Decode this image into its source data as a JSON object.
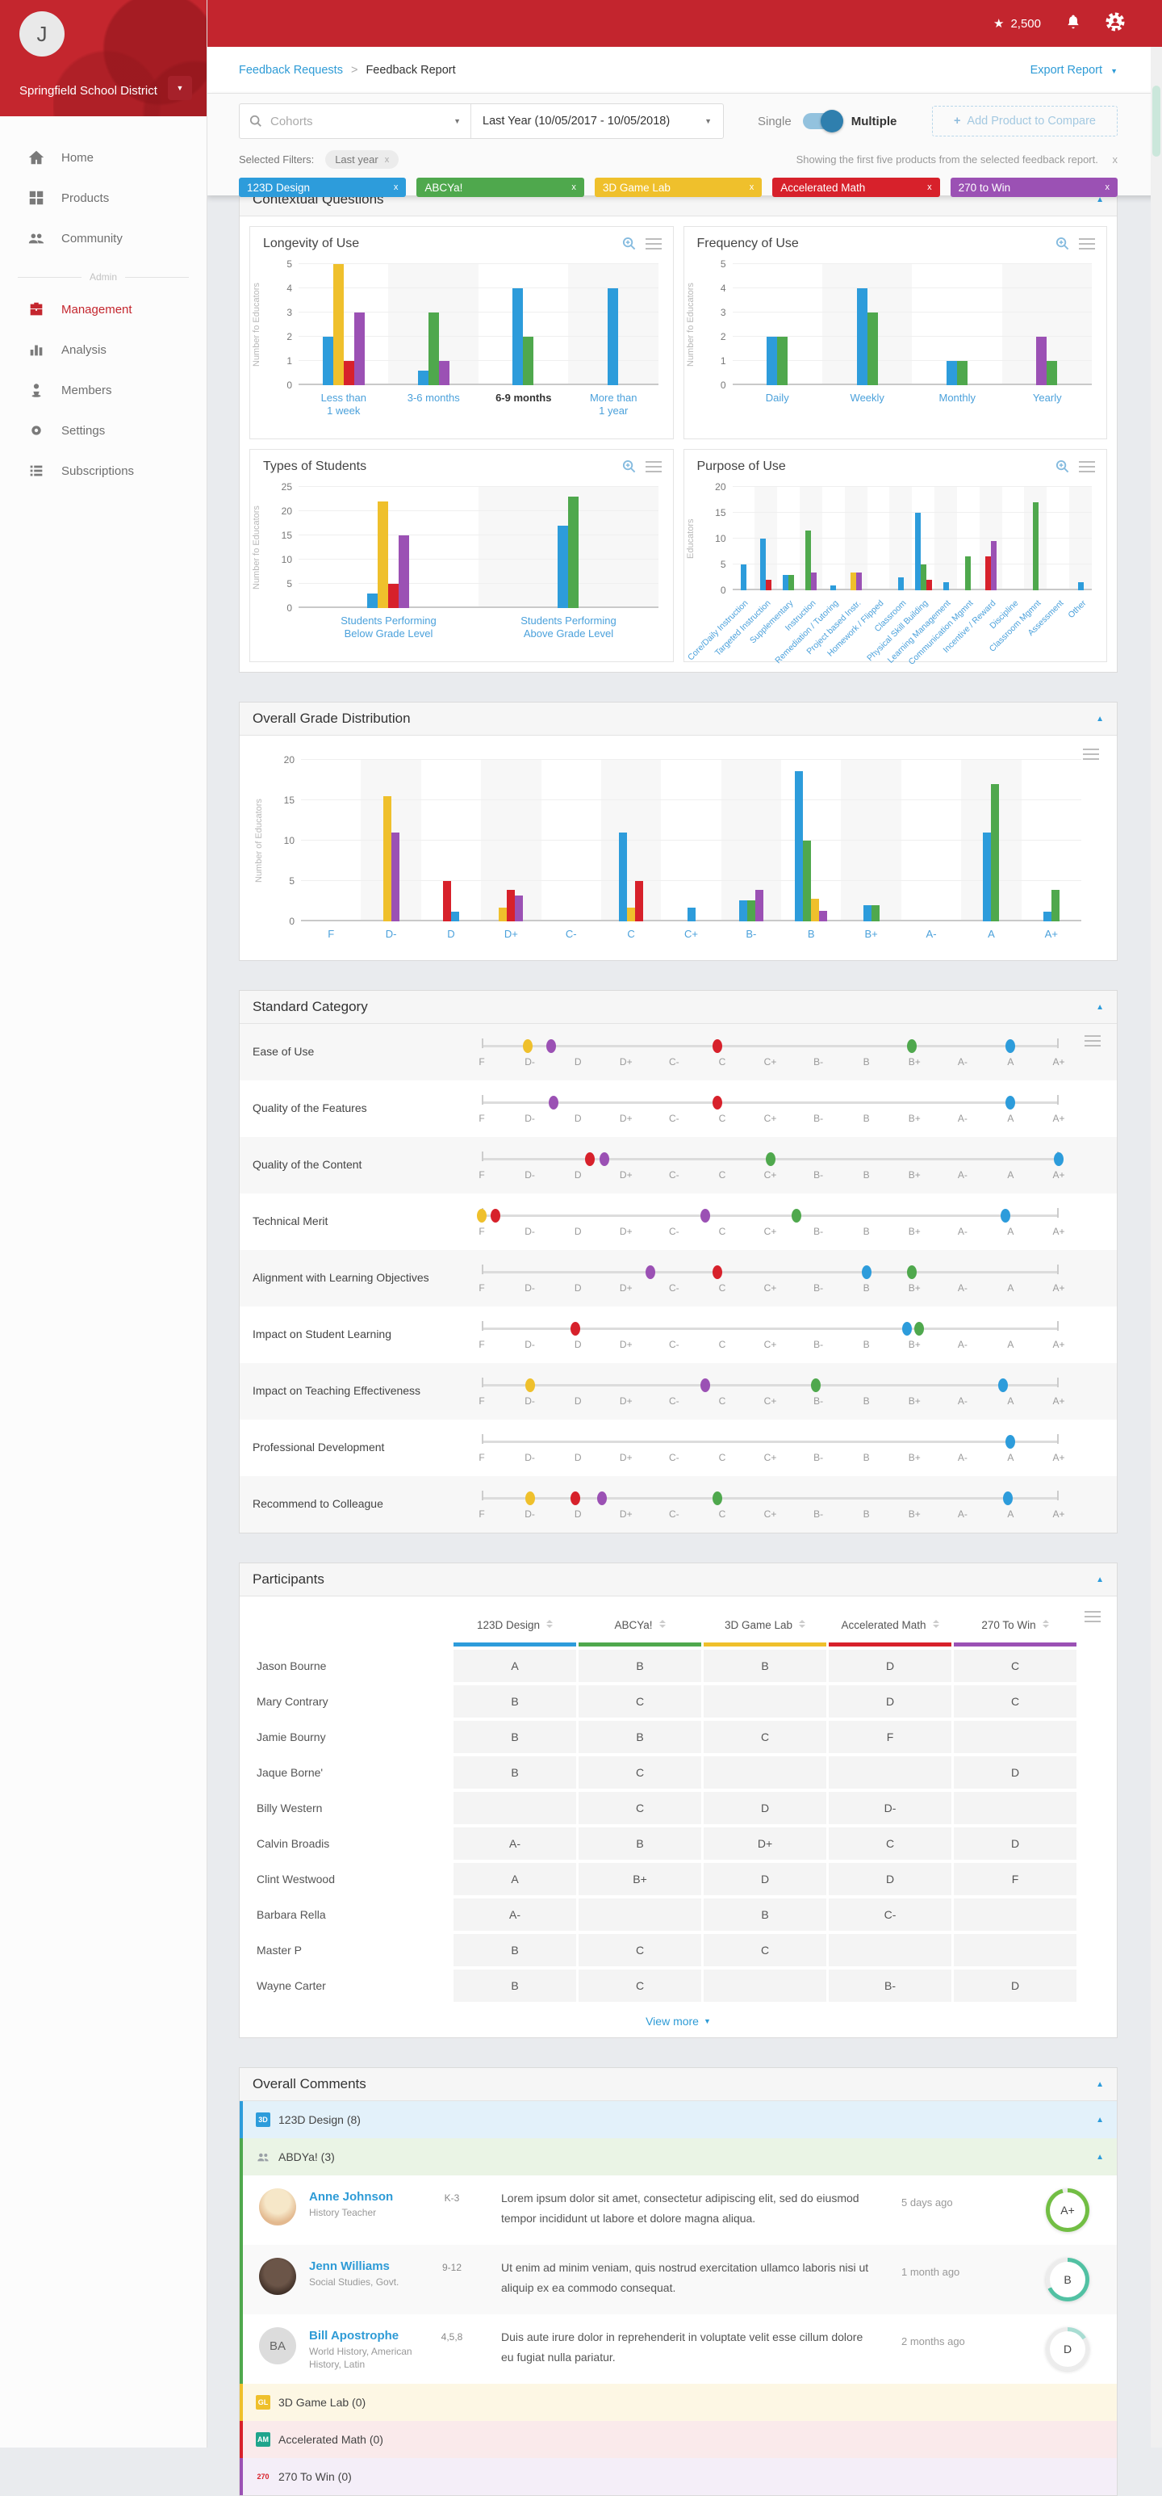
{
  "palette": {
    "blue": "#2D9CDB",
    "green": "#4FA84D",
    "yellow": "#EFC02C",
    "red": "#D7212B",
    "purple": "#9B51B4"
  },
  "series_colors": {
    "blue": "123D Design",
    "green": "ABCYa!",
    "yellow": "3D Game Lab",
    "red": "Accelerated Math",
    "purple": "270 to Win"
  },
  "topbar": {
    "points": "2,500"
  },
  "sidebar": {
    "avatar_initial": "J",
    "org": "Springfield School District",
    "items": [
      {
        "label": "Home",
        "icon": "home",
        "active": false
      },
      {
        "label": "Products",
        "icon": "grid",
        "active": false
      },
      {
        "label": "Community",
        "icon": "people",
        "active": false
      }
    ],
    "admin_label": "Admin",
    "admin_items": [
      {
        "label": "Management",
        "icon": "briefcase",
        "active": true
      },
      {
        "label": "Analysis",
        "icon": "chart",
        "active": false
      },
      {
        "label": "Members",
        "icon": "member",
        "active": false
      },
      {
        "label": "Settings",
        "icon": "gear",
        "active": false
      },
      {
        "label": "Subscriptions",
        "icon": "list",
        "active": false
      }
    ]
  },
  "breadcrumb": {
    "link": "Feedback Requests",
    "sep": ">",
    "current": "Feedback Report",
    "export": "Export Report"
  },
  "filterbar": {
    "search_placeholder": "Cohorts",
    "date_value": "Last Year (10/05/2017 - 10/05/2018)",
    "toggle_left": "Single",
    "toggle_right": "Multiple",
    "add_product": "Add Product to Compare",
    "selected_label": "Selected Filters:",
    "selected_chip": "Last year",
    "chip_close": "x",
    "note": "Showing the first five products from the selected feedback report.",
    "note_close": "x"
  },
  "product_chips": [
    {
      "label": "123D Design",
      "color": "blue",
      "close": "x"
    },
    {
      "label": "ABCYa!",
      "color": "green",
      "close": "x"
    },
    {
      "label": "3D Game Lab",
      "color": "yellow",
      "close": "x"
    },
    {
      "label": "Accelerated Math",
      "color": "red",
      "close": "x"
    },
    {
      "label": "270 to Win",
      "color": "purple",
      "close": "x"
    }
  ],
  "sections": {
    "contextual": "Contextual Questions",
    "grades": "Overall Grade Distribution",
    "standard": "Standard Category",
    "participants": "Participants",
    "comments": "Overall Comments"
  },
  "chart_data": [
    {
      "type": "bar",
      "title": "Longevity of Use",
      "ylabel": "Number fo Educators",
      "ylim": [
        0,
        5
      ],
      "yticks": [
        0,
        1,
        2,
        3,
        4,
        5
      ],
      "categories": [
        "Less than\n1 week",
        "3-6 months",
        "6-9 months",
        "More than\n1 year"
      ],
      "highlight_category": 2,
      "groups": [
        [
          [
            "blue",
            2
          ],
          [
            "yellow",
            5
          ],
          [
            "red",
            1
          ],
          [
            "purple",
            3
          ]
        ],
        [
          [
            "blue",
            0.6
          ],
          [
            "green",
            3
          ],
          [
            "purple",
            1
          ]
        ],
        [
          [
            "blue",
            4
          ],
          [
            "green",
            2
          ]
        ],
        [
          [
            "blue",
            4
          ]
        ]
      ]
    },
    {
      "type": "bar",
      "title": "Frequency of Use",
      "ylabel": "Number fo Educators",
      "ylim": [
        0,
        5
      ],
      "yticks": [
        0,
        1,
        2,
        3,
        4,
        5
      ],
      "categories": [
        "Daily",
        "Weekly",
        "Monthly",
        "Yearly"
      ],
      "groups": [
        [
          [
            "blue",
            2
          ],
          [
            "green",
            2
          ]
        ],
        [
          [
            "blue",
            4
          ],
          [
            "green",
            3
          ]
        ],
        [
          [
            "blue",
            1
          ],
          [
            "green",
            1
          ]
        ],
        [
          [
            "purple",
            2
          ],
          [
            "green",
            1
          ]
        ]
      ]
    },
    {
      "type": "bar",
      "title": "Types of Students",
      "ylabel": "Number fo Educators",
      "ylim": [
        0,
        25
      ],
      "yticks": [
        0,
        5,
        10,
        15,
        20,
        25
      ],
      "categories": [
        "Students Performing\nBelow Grade Level",
        "Students Performing\nAbove Grade Level"
      ],
      "groups": [
        [
          [
            "blue",
            3
          ],
          [
            "yellow",
            22
          ],
          [
            "red",
            5
          ],
          [
            "purple",
            15
          ]
        ],
        [
          [
            "blue",
            17
          ],
          [
            "green",
            23
          ]
        ]
      ]
    },
    {
      "type": "bar",
      "title": "Purpose of Use",
      "ylabel": "Educators",
      "ylim": [
        0,
        20
      ],
      "yticks": [
        0,
        5,
        10,
        15,
        20
      ],
      "rotated_labels": true,
      "categories": [
        "Core/Daily Instruction",
        "Targeted Instruction",
        "Supplementary",
        "Instruction",
        "Remediation / Tutoring",
        "Project based Instr.",
        "Homework / Flipped",
        "Classroom",
        "Physical Skill Building",
        "Learning Management",
        "Communication Mgmnt",
        "Incentive / Reward",
        "Discipline",
        "Classroom Mgmnt",
        "Assessment",
        "Other"
      ],
      "groups": [
        [
          [
            "blue",
            5
          ]
        ],
        [
          [
            "blue",
            10
          ],
          [
            "red",
            2
          ]
        ],
        [
          [
            "blue",
            3
          ],
          [
            "green",
            3
          ]
        ],
        [
          [
            "green",
            11.5
          ],
          [
            "purple",
            3.5
          ]
        ],
        [
          [
            "blue",
            1
          ]
        ],
        [
          [
            "yellow",
            3.5
          ],
          [
            "purple",
            3.5
          ]
        ],
        [],
        [
          [
            "blue",
            2.5
          ]
        ],
        [
          [
            "blue",
            15
          ],
          [
            "green",
            5
          ],
          [
            "red",
            2
          ]
        ],
        [
          [
            "blue",
            1.5
          ]
        ],
        [
          [
            "green",
            6.5
          ]
        ],
        [
          [
            "red",
            6.5
          ],
          [
            "purple",
            9.5
          ]
        ],
        [],
        [
          [
            "green",
            17
          ]
        ],
        [],
        [
          [
            "blue",
            1.5
          ]
        ]
      ]
    },
    {
      "type": "bar",
      "title": "Overall Grade Distribution",
      "ylabel": "Number of Educators",
      "ylim": [
        0,
        20
      ],
      "yticks": [
        0,
        5,
        10,
        15,
        20
      ],
      "categories": [
        "F",
        "D-",
        "D",
        "D+",
        "C-",
        "C",
        "C+",
        "B-",
        "B",
        "B+",
        "A-",
        "A",
        "A+"
      ],
      "groups": [
        [],
        [
          [
            "yellow",
            15.5
          ],
          [
            "purple",
            11
          ]
        ],
        [
          [
            "red",
            5
          ],
          [
            "blue",
            1.2
          ]
        ],
        [
          [
            "yellow",
            1.7
          ],
          [
            "red",
            3.9
          ],
          [
            "purple",
            3.2
          ]
        ],
        [],
        [
          [
            "blue",
            11
          ],
          [
            "yellow",
            1.7
          ],
          [
            "red",
            5
          ]
        ],
        [
          [
            "blue",
            1.7
          ]
        ],
        [
          [
            "blue",
            2.6
          ],
          [
            "green",
            2.6
          ],
          [
            "purple",
            3.9
          ]
        ],
        [
          [
            "blue",
            18.6
          ],
          [
            "green",
            10
          ],
          [
            "yellow",
            2.8
          ],
          [
            "purple",
            1.3
          ]
        ],
        [
          [
            "blue",
            2
          ],
          [
            "green",
            2
          ]
        ],
        [],
        [
          [
            "blue",
            11
          ],
          [
            "green",
            17
          ]
        ],
        [
          [
            "blue",
            1.2
          ],
          [
            "green",
            3.9
          ]
        ]
      ]
    }
  ],
  "standard_category": {
    "scale": [
      "F",
      "D-",
      "D",
      "D+",
      "C-",
      "C",
      "C+",
      "B-",
      "B",
      "B+",
      "A-",
      "A",
      "A+"
    ],
    "rows": [
      {
        "label": "Ease of Use",
        "dots": [
          [
            "yellow",
            0.95
          ],
          [
            "purple",
            1.45
          ],
          [
            "red",
            4.9
          ],
          [
            "green",
            8.95
          ],
          [
            "blue",
            11
          ]
        ]
      },
      {
        "label": "Quality of the Features",
        "dots": [
          [
            "purple",
            1.5
          ],
          [
            "red",
            4.9
          ],
          [
            "blue",
            11
          ]
        ]
      },
      {
        "label": "Quality of the Content",
        "dots": [
          [
            "red",
            2.25
          ],
          [
            "purple",
            2.55
          ],
          [
            "green",
            6
          ],
          [
            "blue",
            12
          ]
        ]
      },
      {
        "label": "Technical Merit",
        "dots": [
          [
            "yellow",
            0
          ],
          [
            "red",
            0.28
          ],
          [
            "purple",
            4.65
          ],
          [
            "green",
            6.55
          ],
          [
            "blue",
            10.9
          ]
        ]
      },
      {
        "label": "Alignment with Learning Objectives",
        "dots": [
          [
            "purple",
            3.5
          ],
          [
            "red",
            4.9
          ],
          [
            "blue",
            8
          ],
          [
            "green",
            8.95
          ]
        ]
      },
      {
        "label": "Impact on Student Learning",
        "dots": [
          [
            "red",
            1.95
          ],
          [
            "blue",
            8.85
          ],
          [
            "green",
            9.1
          ]
        ]
      },
      {
        "label": "Impact on Teaching Effectiveness",
        "dots": [
          [
            "yellow",
            1
          ],
          [
            "purple",
            4.65
          ],
          [
            "green",
            6.95
          ],
          [
            "blue",
            10.85
          ]
        ]
      },
      {
        "label": "Professional Development",
        "dots": [
          [
            "blue",
            11
          ]
        ]
      },
      {
        "label": "Recommend to Colleague",
        "dots": [
          [
            "yellow",
            1
          ],
          [
            "red",
            1.95
          ],
          [
            "purple",
            2.5
          ],
          [
            "green",
            4.9
          ],
          [
            "blue",
            10.95
          ]
        ]
      }
    ]
  },
  "participants": {
    "columns": [
      [
        "123D Design",
        "blue"
      ],
      [
        "ABCYa!",
        "green"
      ],
      [
        "3D Game Lab",
        "yellow"
      ],
      [
        "Accelerated Math",
        "red"
      ],
      [
        "270 To Win",
        "purple"
      ]
    ],
    "rows": [
      [
        "Jason Bourne",
        "A",
        "B",
        "B",
        "D",
        "C"
      ],
      [
        "Mary Contrary",
        "B",
        "C",
        "",
        "D",
        "C"
      ],
      [
        "Jamie Bourny",
        "B",
        "B",
        "C",
        "F",
        ""
      ],
      [
        "Jaque Borne'",
        "B",
        "C",
        "",
        "",
        "D"
      ],
      [
        "Billy Western",
        "",
        "C",
        "D",
        "D-",
        ""
      ],
      [
        "Calvin Broadis",
        "A-",
        "B",
        "D+",
        "C",
        "D"
      ],
      [
        "Clint Westwood",
        "A",
        "B+",
        "D",
        "D",
        "F"
      ],
      [
        "Barbara Rella",
        "A-",
        "",
        "B",
        "C-",
        ""
      ],
      [
        "Master P",
        "B",
        "C",
        "C",
        "",
        ""
      ],
      [
        "Wayne Carter",
        "B",
        "C",
        "",
        "B-",
        "D"
      ]
    ],
    "view_more": "View more"
  },
  "comments": {
    "groups": [
      {
        "label": "123D Design (8)",
        "color": "blue",
        "icon_text": "3D",
        "caret": true,
        "comments": []
      },
      {
        "label": "ABDYa! (3)",
        "color": "green",
        "icon_text": "",
        "icon_people": true,
        "caret": true,
        "comments": [
          {
            "name": "Anne Johnson",
            "role": "History Teacher",
            "grades": "K-3",
            "text": "Lorem ipsum dolor sit amet, consectetur adipiscing elit, sed do eiusmod tempor incididunt ut labore et dolore magna aliqua.",
            "time": "5 days ago",
            "grade": "A+",
            "ring_pct": 96,
            "ring_color": "#72BE44",
            "avatar": "av-photo-light",
            "initials": ""
          },
          {
            "name": "Jenn Williams",
            "role": "Social Studies, Govt.",
            "grades": "9-12",
            "text": "Ut enim ad minim veniam, quis nostrud exercitation ullamco laboris nisi ut aliquip ex ea commodo consequat.",
            "time": "1 month ago",
            "grade": "B",
            "ring_pct": 68,
            "ring_color": "#52C1A3",
            "avatar": "av-photo-dark",
            "initials": ""
          },
          {
            "name": "Bill Apostrophe",
            "role": "World History, American History, Latin",
            "grades": "4,5,8",
            "text": "Duis aute irure dolor in reprehenderit in voluptate velit esse cillum dolore eu fugiat nulla pariatur.",
            "time": "2 months ago",
            "grade": "D",
            "ring_pct": 16,
            "ring_color": "#A8DCD2",
            "avatar": "av-initials",
            "initials": "BA"
          }
        ]
      },
      {
        "label": "3D Game Lab (0)",
        "color": "yellow",
        "icon_text": "GL",
        "comments": []
      },
      {
        "label": "Accelerated Math (0)",
        "color": "red",
        "icon_text": "AM",
        "icon_bg": "#1FA58C",
        "comments": []
      },
      {
        "label": "270 To Win (0)",
        "color": "purple",
        "icon_text": "270",
        "icon_plain": true,
        "comments": []
      }
    ]
  }
}
